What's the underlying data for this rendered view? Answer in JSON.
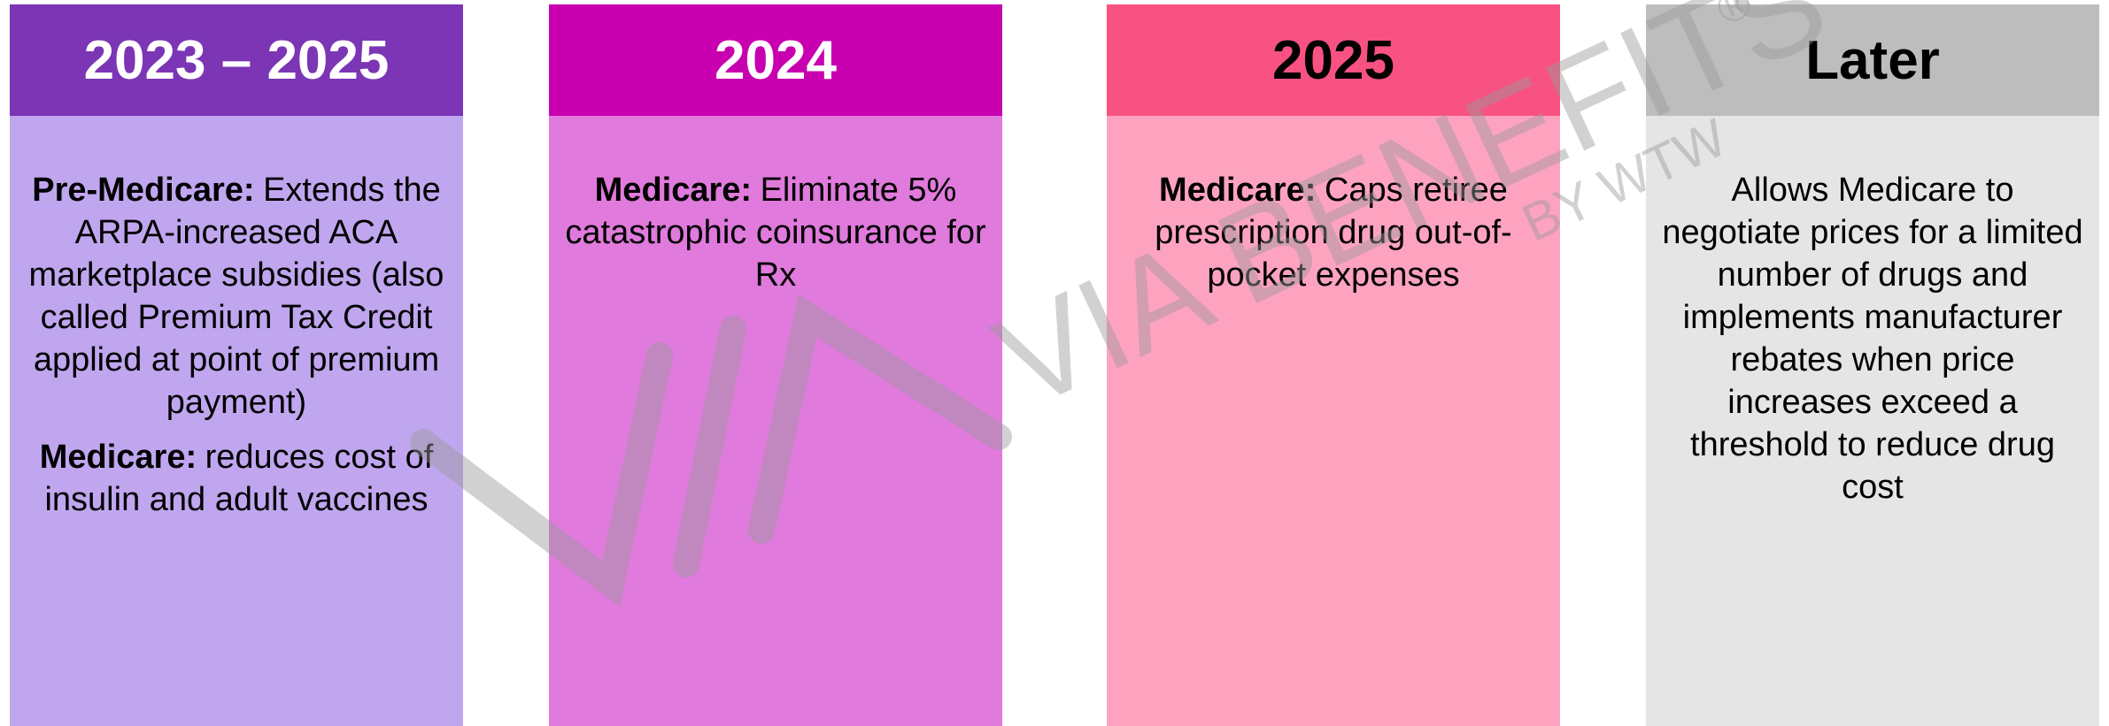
{
  "columns": [
    {
      "header": "2023 – 2025",
      "header_color": "#7b35b5",
      "header_text_color": "#ffffff",
      "body_color": "#c0a6ef",
      "paragraphs": [
        {
          "lead": "Pre-Medicare:",
          "text": "Extends the ARPA-increased ACA marketplace subsidies (also called Premium Tax Credit applied at point of premium payment)"
        },
        {
          "lead": "Medicare:",
          "text": "reduces cost of insulin and adult vaccines"
        }
      ]
    },
    {
      "header": "2024",
      "header_color": "#c800b0",
      "header_text_color": "#ffffff",
      "body_color": "#e07adc",
      "paragraphs": [
        {
          "lead": "Medicare:",
          "text": "Eliminate 5% catastrophic coinsurance for Rx"
        }
      ]
    },
    {
      "header": "2025",
      "header_color": "#f85282",
      "header_text_color": "#000000",
      "body_color": "#fda3c0",
      "paragraphs": [
        {
          "lead": "Medicare:",
          "text": "Caps retiree prescription drug out-of-pocket expenses"
        }
      ]
    },
    {
      "header": "Later",
      "header_color": "#bdbdbd",
      "header_text_color": "#000000",
      "body_color": "#e5e5e5",
      "paragraphs": [
        {
          "text": "Allows Medicare to negotiate prices for a limited number of drugs and implements manufacturer rebates when price increases exceed a threshold to reduce drug cost"
        }
      ]
    }
  ],
  "watermark": {
    "text": "VIA BENEFITS",
    "mark": "®",
    "sub": "BY WTW"
  }
}
